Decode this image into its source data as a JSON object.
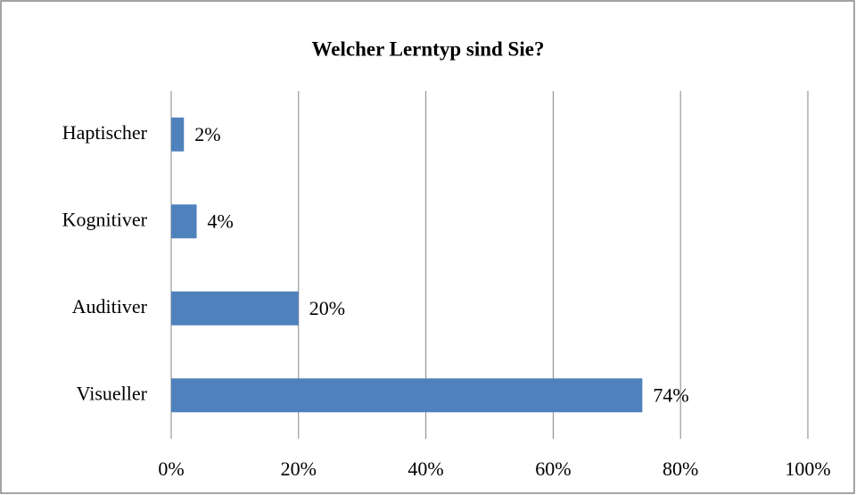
{
  "chart_data": {
    "type": "bar",
    "orientation": "horizontal",
    "title": "Welcher Lerntyp sind Sie?",
    "categories": [
      "Haptischer",
      "Kognitiver",
      "Auditiver",
      "Visueller"
    ],
    "values": [
      2,
      4,
      20,
      74
    ],
    "value_labels": [
      "2%",
      "4%",
      "20%",
      "74%"
    ],
    "color": "#4f81bd",
    "xlim": [
      0,
      100
    ],
    "xticks": [
      {
        "value": 0,
        "label": "0%"
      },
      {
        "value": 20,
        "label": "20%"
      },
      {
        "value": 40,
        "label": "40%"
      },
      {
        "value": 60,
        "label": "60%"
      },
      {
        "value": 80,
        "label": "80%"
      },
      {
        "value": 100,
        "label": "100%"
      }
    ],
    "grid": true
  }
}
